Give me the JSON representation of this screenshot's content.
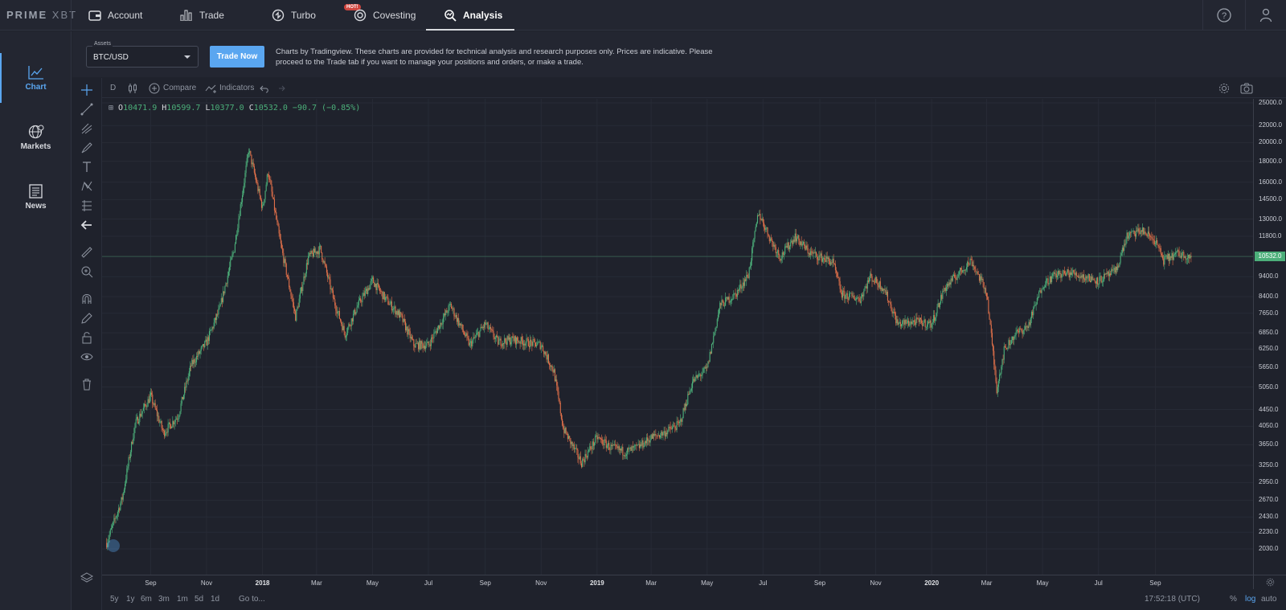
{
  "brand": {
    "logo_main": "PRIME",
    "logo_sub": "XBT"
  },
  "nav": {
    "items": [
      {
        "label": "Account",
        "icon": "wallet-icon"
      },
      {
        "label": "Trade",
        "icon": "bars-icon"
      },
      {
        "label": "Turbo",
        "icon": "turbo-icon"
      },
      {
        "label": "Covesting",
        "icon": "covesting-icon",
        "badge": "HOT!"
      },
      {
        "label": "Analysis",
        "icon": "analysis-icon",
        "active": true
      }
    ]
  },
  "sidebar": {
    "items": [
      {
        "label": "Chart",
        "icon": "chart-icon",
        "active": true
      },
      {
        "label": "Markets",
        "icon": "globe-icon"
      },
      {
        "label": "News",
        "icon": "news-icon"
      }
    ]
  },
  "assets": {
    "label": "Assets",
    "value": "BTC/USD"
  },
  "trade_now_label": "Trade Now",
  "disclaimer": "Charts by Tradingview. These charts are provided for technical analysis and research purposes only. Prices are indicative. Please proceed to the Trade tab if you want to manage your positions and orders, or make a trade.",
  "toolbar": {
    "interval": "D",
    "compare": "Compare",
    "indicators": "Indicators"
  },
  "ohlc": {
    "o_label": "O",
    "o": "10471.9",
    "h_label": "H",
    "h": "10599.7",
    "l_label": "L",
    "l": "10377.0",
    "c_label": "C",
    "c": "10532.0",
    "change": "−90.7 (−0.85%)"
  },
  "chart_data": {
    "type": "line",
    "symbol": "BTC/USD",
    "scale": "log",
    "current_price_label": "10532.0",
    "y_ticks": [
      "25000.0",
      "22000.0",
      "20000.0",
      "18000.0",
      "16000.0",
      "14500.0",
      "13000.0",
      "11800.0",
      "10532.0",
      "9400.0",
      "8400.0",
      "7650.0",
      "6850.0",
      "6250.0",
      "5650.0",
      "5050.0",
      "4450.0",
      "4050.0",
      "3650.0",
      "3250.0",
      "2950.0",
      "2670.0",
      "2430.0",
      "2230.0",
      "2030.0"
    ],
    "x_ticks": [
      {
        "label": "Sep",
        "bold": false
      },
      {
        "label": "Nov",
        "bold": false
      },
      {
        "label": "2018",
        "bold": true
      },
      {
        "label": "Mar",
        "bold": false
      },
      {
        "label": "May",
        "bold": false
      },
      {
        "label": "Jul",
        "bold": false
      },
      {
        "label": "Sep",
        "bold": false
      },
      {
        "label": "Nov",
        "bold": false
      },
      {
        "label": "2019",
        "bold": true
      },
      {
        "label": "Mar",
        "bold": false
      },
      {
        "label": "May",
        "bold": false
      },
      {
        "label": "Jul",
        "bold": false
      },
      {
        "label": "Sep",
        "bold": false
      },
      {
        "label": "Nov",
        "bold": false
      },
      {
        "label": "2020",
        "bold": true
      },
      {
        "label": "Mar",
        "bold": false
      },
      {
        "label": "May",
        "bold": false
      },
      {
        "label": "Jul",
        "bold": false
      },
      {
        "label": "Sep",
        "bold": false
      }
    ],
    "x": [
      "2017-07-15",
      "2017-08-01",
      "2017-08-15",
      "2017-09-01",
      "2017-09-15",
      "2017-10-01",
      "2017-10-15",
      "2017-11-01",
      "2017-11-15",
      "2017-12-01",
      "2017-12-17",
      "2018-01-01",
      "2018-01-07",
      "2018-01-20",
      "2018-02-06",
      "2018-02-20",
      "2018-03-05",
      "2018-03-20",
      "2018-04-01",
      "2018-04-15",
      "2018-05-01",
      "2018-05-15",
      "2018-06-01",
      "2018-06-15",
      "2018-07-01",
      "2018-07-25",
      "2018-08-15",
      "2018-09-01",
      "2018-09-15",
      "2018-10-01",
      "2018-10-15",
      "2018-11-01",
      "2018-11-15",
      "2018-11-25",
      "2018-12-15",
      "2019-01-01",
      "2019-01-15",
      "2019-02-01",
      "2019-02-15",
      "2019-03-01",
      "2019-03-15",
      "2019-04-01",
      "2019-04-15",
      "2019-05-01",
      "2019-05-15",
      "2019-06-01",
      "2019-06-15",
      "2019-06-26",
      "2019-07-10",
      "2019-07-20",
      "2019-08-05",
      "2019-08-20",
      "2019-09-01",
      "2019-09-15",
      "2019-09-25",
      "2019-10-15",
      "2019-10-26",
      "2019-11-10",
      "2019-11-25",
      "2019-12-15",
      "2020-01-01",
      "2020-01-15",
      "2020-02-13",
      "2020-03-01",
      "2020-03-12",
      "2020-03-20",
      "2020-04-01",
      "2020-04-15",
      "2020-05-01",
      "2020-05-15",
      "2020-06-01",
      "2020-06-15",
      "2020-07-01",
      "2020-07-20",
      "2020-08-01",
      "2020-08-17",
      "2020-09-01",
      "2020-09-10",
      "2020-09-25",
      "2020-10-10"
    ],
    "y": [
      2100,
      2700,
      4100,
      4800,
      3900,
      4300,
      5700,
      6500,
      7800,
      11000,
      19200,
      13800,
      17000,
      11500,
      7500,
      10500,
      11000,
      8200,
      6800,
      8000,
      9200,
      8300,
      7500,
      6400,
      6400,
      8000,
      6400,
      7200,
      6500,
      6600,
      6500,
      6400,
      5500,
      4000,
      3300,
      3800,
      3600,
      3500,
      3600,
      3800,
      3900,
      4100,
      5200,
      5600,
      8000,
      8500,
      9500,
      13500,
      11500,
      10500,
      11800,
      10800,
      10500,
      10200,
      8500,
      8300,
      9400,
      8800,
      7200,
      7300,
      7200,
      8800,
      10300,
      8600,
      5000,
      6200,
      6800,
      7100,
      9000,
      9500,
      9600,
      9400,
      9200,
      9700,
      11800,
      12200,
      11500,
      10300,
      10700,
      10532
    ]
  },
  "bottom": {
    "ranges": [
      "5y",
      "1y",
      "6m",
      "3m",
      "1m",
      "5d",
      "1d"
    ],
    "goto": "Go to...",
    "clock": "17:52:18 (UTC)",
    "pct": "%",
    "log": "log",
    "auto": "auto"
  }
}
